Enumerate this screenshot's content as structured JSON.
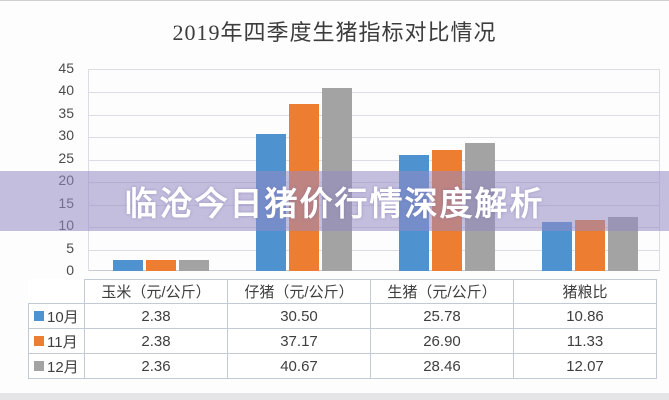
{
  "title": "2019年四季度生猪指标对比情况",
  "overlay": {
    "text": "临沧今日猪价行情深度解析",
    "band_color": "rgba(150,139,196,0.55)"
  },
  "chart_data": {
    "type": "bar",
    "title": "2019年四季度生猪指标对比情况",
    "categories": [
      "玉米（元/公斤）",
      "仔猪（元/公斤）",
      "生猪（元/公斤）",
      "猪粮比"
    ],
    "series": [
      {
        "name": "10月",
        "color": "#4E92D0",
        "values": [
          2.38,
          30.5,
          25.78,
          10.86
        ]
      },
      {
        "name": "11月",
        "color": "#ED7D31",
        "values": [
          2.38,
          37.17,
          26.9,
          11.33
        ]
      },
      {
        "name": "12月",
        "color": "#A3A3A3",
        "values": [
          2.36,
          40.67,
          28.46,
          12.07
        ]
      }
    ],
    "ylim": [
      0,
      45
    ],
    "ytick_step": 5,
    "grid": true,
    "legend_position": "table-left"
  },
  "table": {
    "headers": [
      "玉米（元/公斤）",
      "仔猪（元/公斤）",
      "生猪（元/公斤）",
      "猪粮比"
    ],
    "rows": [
      {
        "label": "10月",
        "key_color": "#4E92D0",
        "values": [
          "2.38",
          "30.50",
          "25.78",
          "10.86"
        ]
      },
      {
        "label": "11月",
        "key_color": "#ED7D31",
        "values": [
          "2.38",
          "37.17",
          "26.90",
          "11.33"
        ]
      },
      {
        "label": "12月",
        "key_color": "#A3A3A3",
        "values": [
          "2.36",
          "40.67",
          "28.46",
          "12.07"
        ]
      }
    ]
  }
}
